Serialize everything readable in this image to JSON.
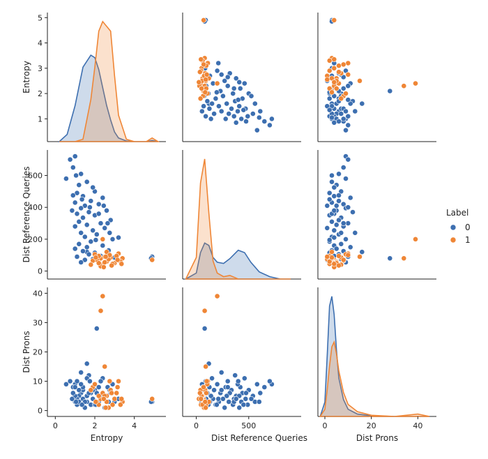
{
  "chart_data": {
    "type": "scatter",
    "title": "",
    "variables": [
      "Entropy",
      "Dist Reference Queries",
      "Dist Prons"
    ],
    "xlabels": [
      "Entropy",
      "Dist Reference Queries",
      "Dist Prons"
    ],
    "ylabels": [
      "Entropy",
      "Dist Reference Queries",
      "Dist Prons"
    ],
    "ranges": [
      [
        -0.4,
        5.6
      ],
      [
        -130,
        1000
      ],
      [
        -3,
        48
      ]
    ],
    "yranges": [
      [
        0.1,
        5.2
      ],
      [
        -50,
        760
      ],
      [
        -2,
        42
      ]
    ],
    "xticks": [
      [
        0,
        2,
        4
      ],
      [
        0,
        500
      ],
      [
        0,
        20,
        40
      ]
    ],
    "yticks": [
      [
        1,
        2,
        3,
        4,
        5
      ],
      [
        0,
        200,
        400,
        600
      ],
      [
        0,
        10,
        20,
        30,
        40
      ]
    ],
    "legend": {
      "title": "Label",
      "placement": "right",
      "entries": [
        {
          "label": "0",
          "color": "#3d6fb0"
        },
        {
          "label": "1",
          "color": "#ef8636"
        }
      ]
    },
    "series": [
      {
        "name": "0",
        "color": "#3d6fb0",
        "points": [
          [
            4.9,
            90,
            3
          ],
          [
            4.85,
            80,
            3
          ],
          [
            2.1,
            80,
            28
          ],
          [
            1.6,
            120,
            16
          ],
          [
            1.0,
            720,
            9
          ],
          [
            0.75,
            700,
            10
          ],
          [
            0.9,
            650,
            8
          ],
          [
            1.3,
            610,
            6
          ],
          [
            1.6,
            560,
            3
          ],
          [
            1.2,
            540,
            5
          ],
          [
            2.0,
            500,
            7
          ],
          [
            1.1,
            490,
            2
          ],
          [
            1.4,
            470,
            4
          ],
          [
            2.4,
            460,
            11
          ],
          [
            1.8,
            440,
            6
          ],
          [
            1.0,
            430,
            3
          ],
          [
            2.2,
            420,
            8
          ],
          [
            1.5,
            410,
            1
          ],
          [
            1.3,
            395,
            9
          ],
          [
            2.6,
            380,
            5
          ],
          [
            1.7,
            370,
            12
          ],
          [
            1.1,
            360,
            4
          ],
          [
            2.0,
            350,
            2
          ],
          [
            1.4,
            335,
            7
          ],
          [
            2.8,
            320,
            6
          ],
          [
            1.2,
            310,
            3
          ],
          [
            2.3,
            300,
            10
          ],
          [
            1.6,
            290,
            5
          ],
          [
            1.0,
            280,
            8
          ],
          [
            2.5,
            270,
            1
          ],
          [
            1.9,
            255,
            4
          ],
          [
            1.3,
            240,
            13
          ],
          [
            2.1,
            230,
            6
          ],
          [
            1.5,
            215,
            3
          ],
          [
            2.9,
            200,
            9
          ],
          [
            1.8,
            185,
            2
          ],
          [
            1.2,
            170,
            7
          ],
          [
            2.4,
            160,
            4
          ],
          [
            1.6,
            150,
            11
          ],
          [
            1.0,
            140,
            5
          ],
          [
            2.7,
            130,
            3
          ],
          [
            1.4,
            125,
            8
          ],
          [
            2.0,
            115,
            2
          ],
          [
            1.7,
            105,
            6
          ],
          [
            2.3,
            95,
            4
          ],
          [
            1.1,
            90,
            10
          ],
          [
            3.0,
            85,
            3
          ],
          [
            1.9,
            75,
            7
          ],
          [
            1.5,
            70,
            1
          ],
          [
            2.6,
            60,
            5
          ],
          [
            1.3,
            55,
            9
          ],
          [
            2.2,
            50,
            3
          ],
          [
            0.9,
            475,
            6
          ],
          [
            1.9,
            525,
            4
          ],
          [
            2.2,
            360,
            3
          ],
          [
            1.35,
            450,
            2
          ],
          [
            2.45,
            410,
            5
          ],
          [
            0.55,
            580,
            9
          ],
          [
            2.75,
            240,
            7
          ],
          [
            3.2,
            210,
            4
          ],
          [
            1.05,
            600,
            3
          ],
          [
            2.65,
            300,
            8
          ],
          [
            1.75,
            400,
            10
          ],
          [
            0.85,
            380,
            4
          ],
          [
            2.05,
            195,
            2
          ]
        ]
      },
      {
        "name": "1",
        "color": "#ef8636",
        "points": [
          [
            4.9,
            70,
            4
          ],
          [
            2.4,
            200,
            39
          ],
          [
            2.3,
            80,
            34
          ],
          [
            2.5,
            90,
            15
          ],
          [
            3.2,
            110,
            10
          ],
          [
            2.1,
            70,
            3
          ],
          [
            2.6,
            60,
            5
          ],
          [
            2.8,
            85,
            7
          ],
          [
            2.2,
            95,
            2
          ],
          [
            3.0,
            50,
            4
          ],
          [
            2.4,
            40,
            6
          ],
          [
            2.7,
            75,
            1
          ],
          [
            1.9,
            65,
            8
          ],
          [
            3.4,
            80,
            3
          ],
          [
            2.5,
            55,
            5
          ],
          [
            2.0,
            105,
            9
          ],
          [
            2.9,
            45,
            2
          ],
          [
            2.3,
            30,
            4
          ],
          [
            3.1,
            95,
            6
          ],
          [
            2.6,
            120,
            3
          ],
          [
            1.8,
            40,
            7
          ],
          [
            3.3,
            60,
            2
          ],
          [
            2.2,
            50,
            5
          ],
          [
            2.75,
            100,
            10
          ],
          [
            2.45,
            25,
            4
          ],
          [
            3.15,
            70,
            8
          ],
          [
            2.05,
            85,
            3
          ],
          [
            2.85,
            35,
            6
          ],
          [
            2.55,
            90,
            1
          ],
          [
            3.35,
            45,
            4
          ]
        ]
      }
    ],
    "kde": {
      "Entropy": {
        "x": [
          0.2,
          0.6,
          1.0,
          1.4,
          1.8,
          2.0,
          2.2,
          2.4,
          2.6,
          2.8,
          3.0,
          3.2,
          3.6,
          4.0,
          4.6,
          4.9,
          5.2
        ],
        "y0": [
          0.0,
          0.06,
          0.3,
          0.62,
          0.72,
          0.7,
          0.6,
          0.45,
          0.3,
          0.18,
          0.08,
          0.03,
          0.005,
          0.0,
          0.0,
          0.01,
          0.0
        ],
        "y1": [
          0.0,
          0.0,
          0.0,
          0.02,
          0.35,
          0.62,
          0.92,
          1.0,
          0.96,
          0.92,
          0.55,
          0.22,
          0.02,
          0.0,
          0.0,
          0.03,
          0.0
        ]
      },
      "Dist Reference Queries": {
        "x": [
          -100,
          0,
          40,
          80,
          120,
          160,
          200,
          260,
          320,
          400,
          460,
          520,
          600,
          700,
          800,
          900
        ],
        "y0": [
          0.0,
          0.05,
          0.22,
          0.3,
          0.28,
          0.18,
          0.14,
          0.13,
          0.17,
          0.24,
          0.22,
          0.14,
          0.06,
          0.02,
          0.0,
          0.0
        ],
        "y1": [
          0.0,
          0.18,
          0.8,
          1.0,
          0.55,
          0.15,
          0.05,
          0.02,
          0.03,
          0.0,
          0.0,
          0.0,
          0.0,
          0.0,
          0.0,
          0.0
        ]
      },
      "Dist Prons": {
        "x": [
          -2,
          0,
          1,
          2,
          3,
          4,
          5,
          6,
          8,
          10,
          14,
          20,
          30,
          35,
          40,
          45
        ],
        "y0": [
          0.0,
          0.12,
          0.5,
          0.92,
          1.0,
          0.85,
          0.55,
          0.32,
          0.14,
          0.06,
          0.02,
          0.005,
          0.0,
          0.0,
          0.0,
          0.0
        ],
        "y1": [
          0.0,
          0.06,
          0.22,
          0.42,
          0.58,
          0.62,
          0.52,
          0.38,
          0.2,
          0.1,
          0.04,
          0.01,
          0.0,
          0.01,
          0.02,
          0.0
        ]
      }
    }
  }
}
